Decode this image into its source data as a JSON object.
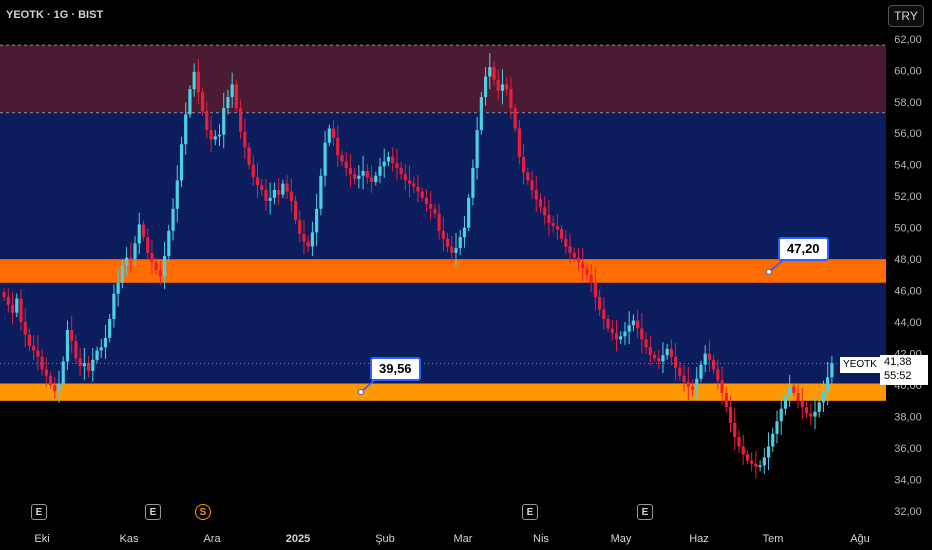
{
  "header": {
    "symbol_title": "YEOTK · 1G · BIST",
    "currency": "TRY"
  },
  "price_tag": {
    "symbol": "YEOTK",
    "last_price": "41,38",
    "countdown": "55:52"
  },
  "callouts": [
    {
      "label": "47,20"
    },
    {
      "label": "39,56"
    }
  ],
  "events": [
    {
      "icon": "E"
    },
    {
      "icon": "E"
    },
    {
      "icon": "S"
    },
    {
      "icon": "E"
    },
    {
      "icon": "E"
    }
  ],
  "colors": {
    "up": "#4dd0e1",
    "down": "#e91e3a",
    "zone_upper": "#4a1b33",
    "zone_mid": "#0b1d5c",
    "band_47": "#ff6d00",
    "band_39": "#ff9800",
    "callout_border": "#2962ff"
  },
  "chart_data": {
    "type": "candlestick",
    "x_tick_labels": [
      "Eki",
      "Kas",
      "Ara",
      "2025",
      "Şub",
      "Mar",
      "Nis",
      "May",
      "Haz",
      "Tem",
      "Ağu"
    ],
    "y_tick_labels": [
      "32,00",
      "34,00",
      "36,00",
      "38,00",
      "40,00",
      "42,00",
      "44,00",
      "46,00",
      "48,00",
      "50,00",
      "52,00",
      "54,00",
      "56,00",
      "58,00",
      "60,00",
      "62,00"
    ],
    "ylim": [
      32,
      63
    ],
    "zones": [
      {
        "from": 57.3,
        "to": 61.6,
        "color": "#4a1b33"
      },
      {
        "from": 40.1,
        "to": 57.3,
        "color": "#0b1d5c"
      },
      {
        "from": 46.5,
        "to": 48.0,
        "color": "#ff6d00"
      },
      {
        "from": 39.0,
        "to": 40.1,
        "color": "#ff9800"
      }
    ],
    "levels": [
      47.2,
      39.56
    ],
    "last_price": 41.38,
    "closes": [
      45.6,
      45.1,
      44.6,
      45.5,
      44.0,
      43.2,
      42.5,
      42.2,
      41.8,
      41.0,
      40.6,
      40.0,
      39.6,
      40.1,
      41.5,
      43.5,
      42.8,
      41.7,
      41.2,
      41.4,
      40.9,
      41.6,
      42.2,
      42.4,
      43.0,
      44.2,
      45.8,
      46.5,
      47.6,
      48.1,
      48.0,
      49.0,
      50.2,
      49.4,
      48.4,
      47.8,
      47.3,
      46.9,
      48.2,
      49.8,
      51.2,
      53.0,
      55.3,
      57.2,
      58.8,
      59.9,
      58.6,
      57.4,
      56.2,
      55.6,
      55.8,
      55.9,
      57.6,
      58.3,
      59.1,
      57.6,
      56.1,
      55.1,
      54.0,
      53.2,
      52.7,
      52.4,
      51.7,
      51.9,
      52.4,
      52.1,
      52.8,
      52.3,
      51.7,
      50.5,
      49.6,
      49.1,
      48.8,
      49.7,
      51.2,
      53.3,
      55.4,
      56.3,
      55.7,
      54.6,
      54.2,
      53.8,
      53.4,
      53.1,
      53.3,
      53.6,
      53.2,
      52.9,
      53.3,
      53.9,
      54.2,
      54.5,
      54.1,
      53.8,
      53.4,
      53.0,
      52.8,
      52.6,
      52.3,
      51.9,
      51.5,
      51.2,
      50.9,
      49.8,
      49.3,
      48.8,
      48.4,
      48.7,
      49.4,
      50.0,
      51.9,
      53.8,
      56.2,
      58.3,
      59.6,
      60.2,
      59.4,
      58.7,
      59.1,
      58.8,
      57.6,
      56.3,
      54.5,
      53.5,
      53.0,
      52.4,
      51.8,
      51.3,
      50.8,
      50.3,
      50.1,
      49.9,
      49.3,
      48.8,
      48.4,
      48.1,
      47.8,
      47.4,
      47.0,
      46.5,
      45.6,
      44.8,
      44.2,
      43.6,
      43.3,
      42.9,
      43.1,
      43.4,
      43.8,
      44.1,
      43.6,
      42.9,
      42.4,
      41.9,
      41.7,
      41.5,
      41.9,
      42.3,
      41.8,
      41.1,
      40.6,
      40.2,
      39.9,
      39.7,
      40.4,
      41.3,
      42.0,
      41.6,
      41.0,
      40.3,
      39.5,
      38.6,
      37.6,
      36.7,
      36.1,
      35.6,
      35.2,
      35.0,
      34.8,
      34.9,
      35.4,
      36.1,
      36.9,
      37.7,
      38.5,
      39.3,
      39.9,
      39.5,
      39.0,
      38.6,
      38.2,
      38.0,
      38.3,
      38.9,
      39.6,
      40.5,
      41.4
    ]
  }
}
